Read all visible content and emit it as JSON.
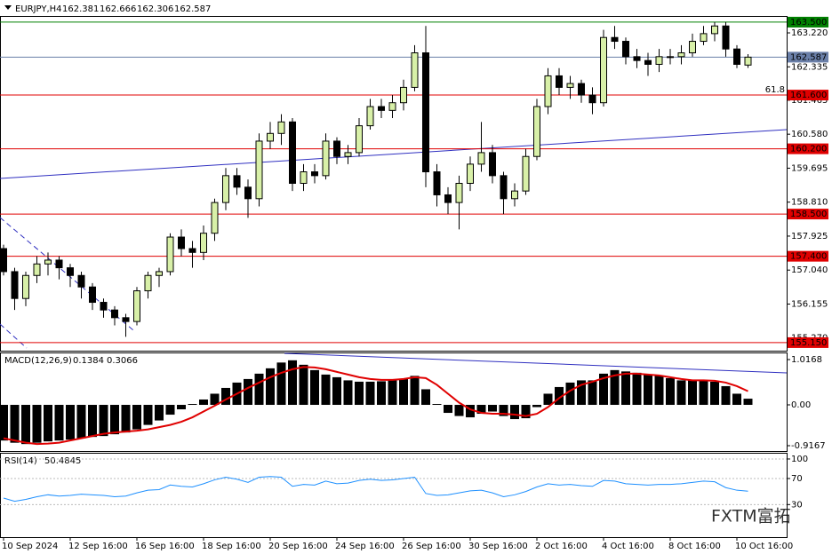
{
  "chart_data": {
    "type": "candlestick",
    "symbol": "EURJPY,H4",
    "ohlc": [
      "162.381",
      "162.666",
      "162.306",
      "162.587"
    ],
    "x_labels": [
      "10 Sep 2024",
      "12 Sep 16:00",
      "16 Sep 16:00",
      "18 Sep 16:00",
      "20 Sep 16:00",
      "24 Sep 16:00",
      "26 Sep 16:00",
      "30 Sep 16:00",
      "2 Oct 16:00",
      "4 Oct 16:00",
      "8 Oct 16:00",
      "10 Oct 16:00"
    ],
    "candles": [
      [
        157.6,
        157.7,
        156.9,
        157.0
      ],
      [
        157.0,
        157.1,
        156.0,
        156.3
      ],
      [
        156.3,
        157.0,
        156.1,
        156.9
      ],
      [
        156.9,
        157.4,
        156.7,
        157.2
      ],
      [
        157.2,
        157.5,
        156.9,
        157.3
      ],
      [
        157.3,
        157.4,
        156.8,
        157.1
      ],
      [
        157.1,
        157.2,
        156.6,
        156.9
      ],
      [
        156.9,
        157.0,
        156.3,
        156.6
      ],
      [
        156.6,
        156.7,
        156.0,
        156.2
      ],
      [
        156.2,
        156.3,
        155.8,
        156.0
      ],
      [
        156.0,
        156.1,
        155.6,
        155.8
      ],
      [
        155.8,
        155.9,
        155.3,
        155.7
      ],
      [
        155.7,
        156.6,
        155.6,
        156.5
      ],
      [
        156.5,
        157.0,
        156.3,
        156.9
      ],
      [
        156.9,
        157.1,
        156.6,
        157.0
      ],
      [
        157.0,
        158.0,
        156.9,
        157.9
      ],
      [
        157.9,
        158.1,
        157.4,
        157.6
      ],
      [
        157.6,
        157.8,
        157.1,
        157.5
      ],
      [
        157.5,
        158.2,
        157.3,
        158.0
      ],
      [
        158.0,
        158.9,
        157.8,
        158.8
      ],
      [
        158.8,
        159.7,
        158.6,
        159.5
      ],
      [
        159.5,
        159.7,
        159.0,
        159.2
      ],
      [
        159.2,
        159.4,
        158.4,
        158.9
      ],
      [
        158.9,
        160.6,
        158.7,
        160.4
      ],
      [
        160.4,
        160.9,
        160.2,
        160.6
      ],
      [
        160.6,
        161.1,
        160.3,
        160.9
      ],
      [
        160.9,
        161.0,
        159.1,
        159.3
      ],
      [
        159.3,
        159.8,
        159.1,
        159.6
      ],
      [
        159.6,
        159.8,
        159.3,
        159.5
      ],
      [
        159.5,
        160.6,
        159.4,
        160.4
      ],
      [
        160.4,
        160.5,
        159.8,
        160.0
      ],
      [
        160.0,
        160.3,
        159.8,
        160.1
      ],
      [
        160.1,
        161.0,
        160.0,
        160.8
      ],
      [
        160.8,
        161.5,
        160.7,
        161.3
      ],
      [
        161.3,
        161.5,
        161.0,
        161.2
      ],
      [
        161.2,
        161.6,
        161.0,
        161.4
      ],
      [
        161.4,
        162.0,
        161.2,
        161.8
      ],
      [
        161.8,
        162.9,
        161.7,
        162.7
      ],
      [
        162.7,
        163.4,
        159.2,
        159.6
      ],
      [
        159.6,
        159.8,
        158.7,
        159.0
      ],
      [
        159.0,
        159.2,
        158.5,
        158.8
      ],
      [
        158.8,
        159.5,
        158.1,
        159.3
      ],
      [
        159.3,
        160.0,
        159.1,
        159.8
      ],
      [
        159.8,
        160.9,
        159.6,
        160.1
      ],
      [
        160.1,
        160.3,
        159.3,
        159.5
      ],
      [
        159.5,
        159.6,
        158.5,
        158.9
      ],
      [
        158.9,
        159.3,
        158.7,
        159.1
      ],
      [
        159.1,
        160.2,
        159.0,
        160.0
      ],
      [
        160.0,
        161.5,
        159.9,
        161.3
      ],
      [
        161.3,
        162.3,
        161.1,
        162.1
      ],
      [
        162.1,
        162.3,
        161.6,
        161.8
      ],
      [
        161.8,
        162.1,
        161.5,
        161.9
      ],
      [
        161.9,
        162.0,
        161.4,
        161.6
      ],
      [
        161.6,
        161.8,
        161.1,
        161.4
      ],
      [
        161.4,
        163.3,
        161.3,
        163.1
      ],
      [
        163.1,
        163.4,
        162.8,
        163.0
      ],
      [
        163.0,
        163.1,
        162.4,
        162.6
      ],
      [
        162.6,
        162.8,
        162.3,
        162.5
      ],
      [
        162.5,
        162.7,
        162.1,
        162.4
      ],
      [
        162.4,
        162.8,
        162.2,
        162.6
      ],
      [
        162.6,
        162.8,
        162.4,
        162.6
      ],
      [
        162.6,
        162.9,
        162.4,
        162.7
      ],
      [
        162.7,
        163.2,
        162.6,
        163.0
      ],
      [
        163.0,
        163.4,
        162.9,
        163.2
      ],
      [
        163.2,
        163.5,
        163.0,
        163.4
      ],
      [
        163.4,
        163.5,
        162.6,
        162.8
      ],
      [
        162.8,
        162.9,
        162.3,
        162.4
      ],
      [
        162.381,
        162.666,
        162.306,
        162.587
      ]
    ],
    "ylim": [
      154.94,
      163.66
    ],
    "yticks": [
      {
        "value": 163.22,
        "label": "163.220"
      },
      {
        "value": 162.335,
        "label": "162.335"
      },
      {
        "value": 161.465,
        "label": "161.465"
      },
      {
        "value": 160.58,
        "label": "160.580"
      },
      {
        "value": 159.695,
        "label": "159.695"
      },
      {
        "value": 158.81,
        "label": "158.810"
      },
      {
        "value": 157.925,
        "label": "157.925"
      },
      {
        "value": 157.04,
        "label": "157.040"
      },
      {
        "value": 156.155,
        "label": "156.155"
      },
      {
        "value": 155.27,
        "label": "155.270"
      }
    ],
    "levels": [
      {
        "value": 163.5,
        "label": "163.500",
        "color": "#008000"
      },
      {
        "value": 162.587,
        "label": "162.587",
        "color": "#6a7fa8"
      },
      {
        "value": 161.6,
        "label": "161.600",
        "color": "#e00000"
      },
      {
        "value": 160.2,
        "label": "160.200",
        "color": "#e00000"
      },
      {
        "value": 158.5,
        "label": "158.500",
        "color": "#e00000"
      },
      {
        "value": 157.4,
        "label": "157.400",
        "color": "#e00000"
      },
      {
        "value": 155.15,
        "label": "155.150",
        "color": "#e00000"
      }
    ],
    "annotation": "61.8",
    "macd": {
      "label": "MACD(12,26,9)",
      "values_text": [
        "0.1384",
        "0.3066"
      ],
      "ylim": [
        -1.036,
        1.176
      ],
      "yticks": [
        {
          "value": 1.0168,
          "label": "1.0168"
        },
        {
          "value": 0,
          "label": "0.00"
        },
        {
          "value": -0.9167,
          "label": "-0.9167"
        }
      ],
      "histogram": [
        -0.8,
        -0.85,
        -0.88,
        -0.85,
        -0.82,
        -0.8,
        -0.78,
        -0.75,
        -0.72,
        -0.7,
        -0.66,
        -0.62,
        -0.55,
        -0.45,
        -0.35,
        -0.22,
        -0.1,
        0.02,
        0.12,
        0.25,
        0.38,
        0.5,
        0.58,
        0.7,
        0.82,
        0.95,
        1.0,
        0.9,
        0.78,
        0.68,
        0.62,
        0.55,
        0.52,
        0.52,
        0.53,
        0.55,
        0.58,
        0.65,
        0.35,
        0.02,
        -0.18,
        -0.25,
        -0.28,
        -0.2,
        -0.15,
        -0.25,
        -0.32,
        -0.3,
        -0.05,
        0.25,
        0.4,
        0.5,
        0.55,
        0.55,
        0.7,
        0.78,
        0.75,
        0.72,
        0.68,
        0.65,
        0.6,
        0.55,
        0.55,
        0.55,
        0.52,
        0.42,
        0.25,
        0.1384
      ],
      "signal": [
        -0.75,
        -0.8,
        -0.85,
        -0.88,
        -0.87,
        -0.85,
        -0.8,
        -0.75,
        -0.7,
        -0.65,
        -0.62,
        -0.6,
        -0.58,
        -0.55,
        -0.5,
        -0.45,
        -0.38,
        -0.28,
        -0.15,
        -0.02,
        0.12,
        0.25,
        0.38,
        0.5,
        0.62,
        0.72,
        0.8,
        0.85,
        0.84,
        0.8,
        0.74,
        0.68,
        0.62,
        0.58,
        0.56,
        0.56,
        0.58,
        0.62,
        0.6,
        0.45,
        0.25,
        0.05,
        -0.1,
        -0.18,
        -0.2,
        -0.2,
        -0.22,
        -0.25,
        -0.2,
        -0.05,
        0.15,
        0.32,
        0.45,
        0.52,
        0.6,
        0.66,
        0.7,
        0.7,
        0.68,
        0.66,
        0.62,
        0.58,
        0.55,
        0.55,
        0.54,
        0.5,
        0.42,
        0.3066
      ],
      "signal_color": "#e00000"
    },
    "rsi": {
      "label": "RSI(14)",
      "value_text": "50.4845",
      "ylim": [
        -20,
        109.5
      ],
      "yticks": [
        100,
        70,
        30
      ],
      "values": [
        40,
        35,
        38,
        42,
        45,
        43,
        44,
        46,
        45,
        44,
        42,
        43,
        48,
        52,
        53,
        60,
        58,
        57,
        62,
        68,
        72,
        69,
        64,
        72,
        73,
        72,
        58,
        61,
        60,
        66,
        62,
        63,
        67,
        69,
        67,
        68,
        70,
        72,
        47,
        44,
        45,
        48,
        51,
        52,
        48,
        42,
        45,
        50,
        57,
        62,
        60,
        61,
        59,
        58,
        67,
        66,
        62,
        61,
        60,
        61,
        61,
        62,
        64,
        66,
        65,
        56,
        52,
        50.4845
      ],
      "color": "#1e90ff"
    },
    "watermark": "FXTM富拓"
  }
}
